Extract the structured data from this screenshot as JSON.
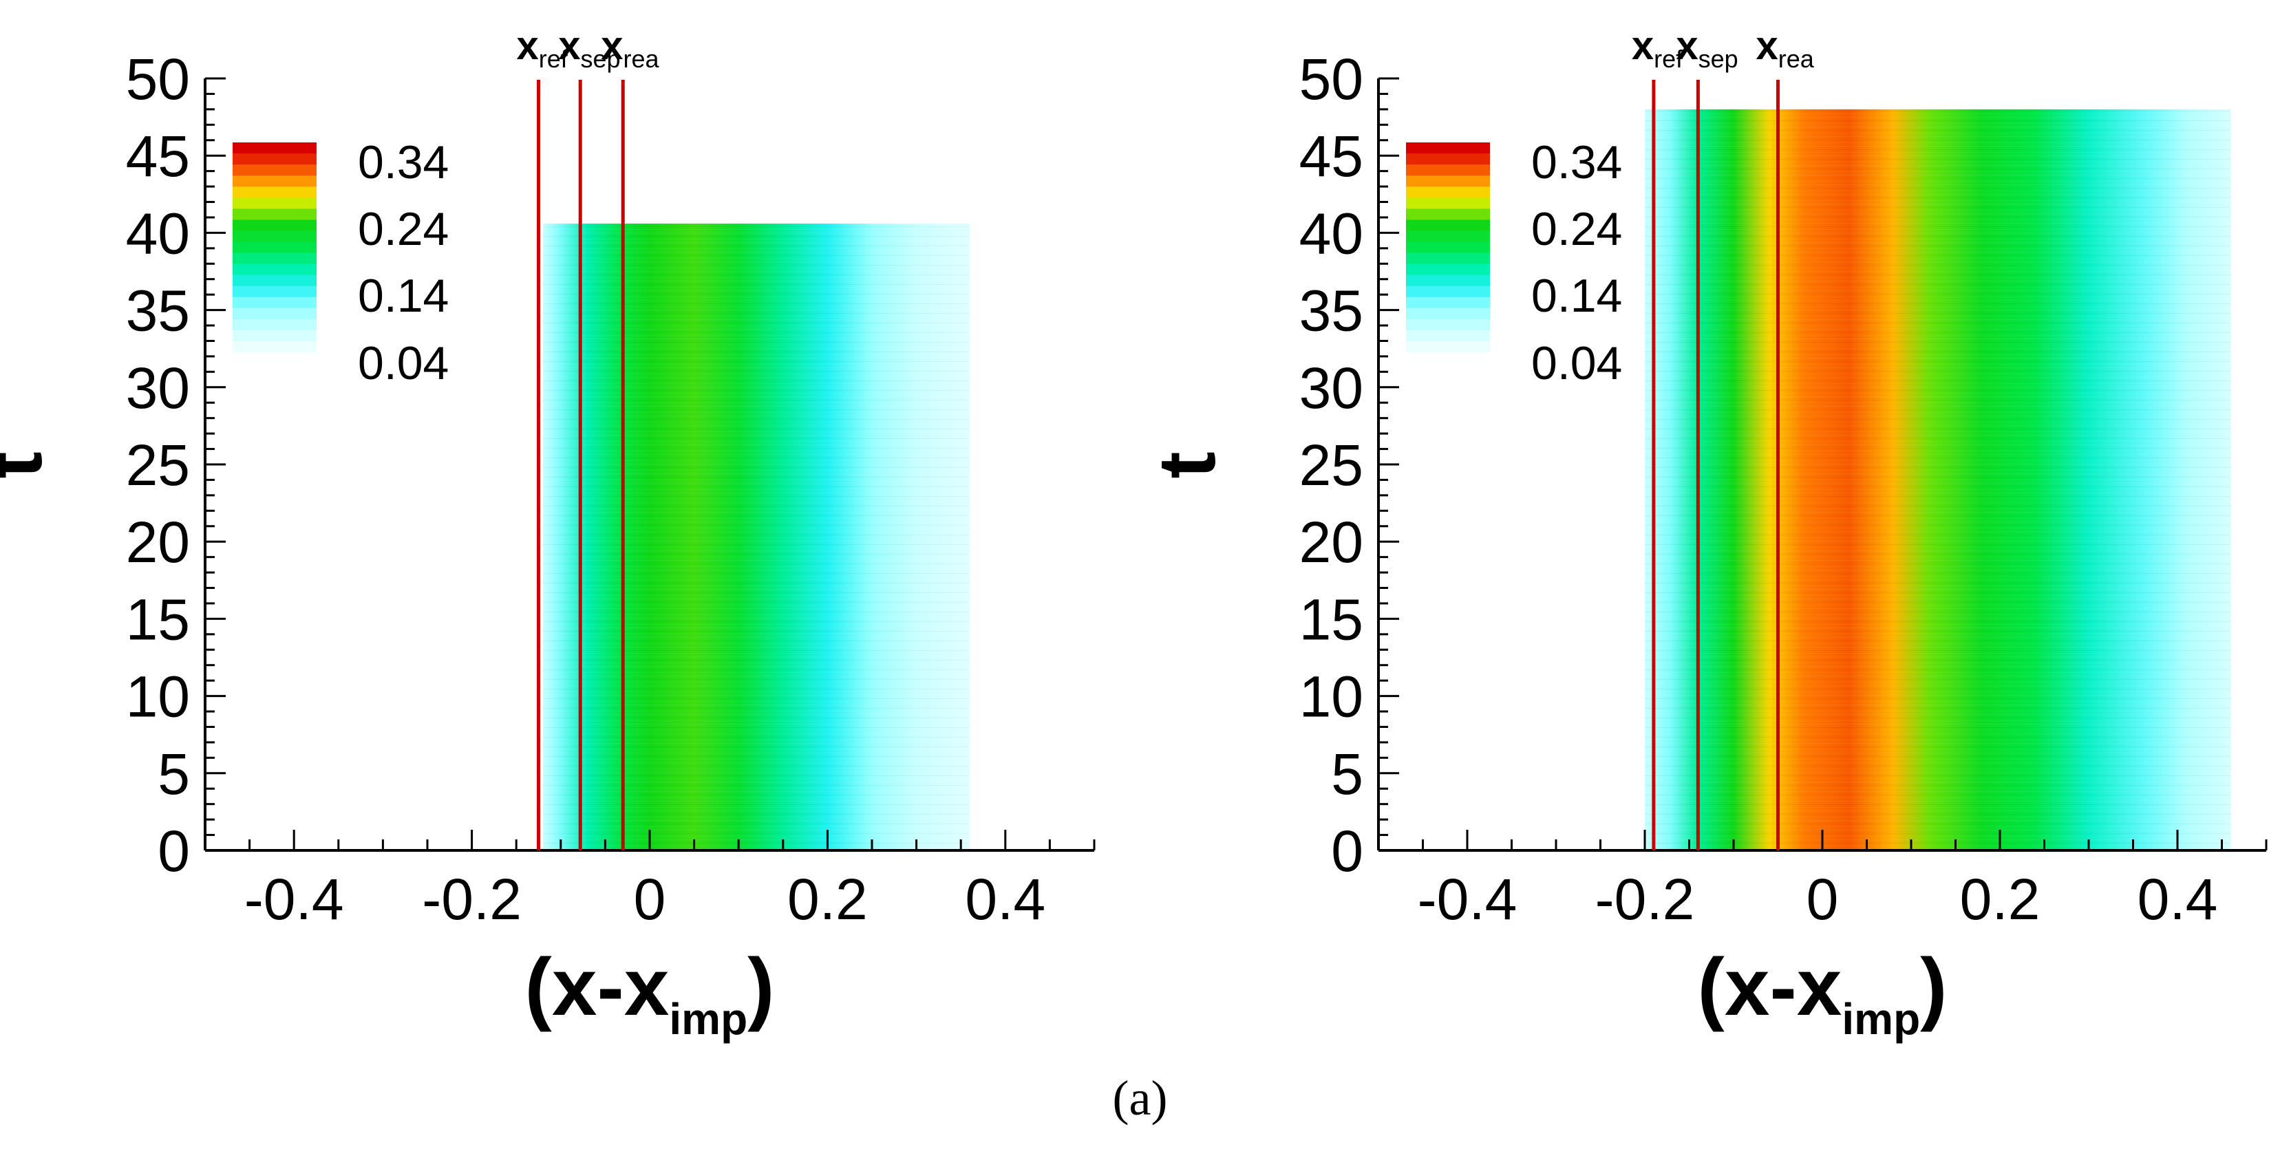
{
  "caption": "(a)",
  "chart_data": [
    {
      "type": "heatmap",
      "panel": "left",
      "xlabel": "(x-x",
      "xlabel_sub": "imp",
      "xlabel_close": ")",
      "ylabel": "t",
      "xlim": [
        -0.5,
        0.5
      ],
      "ylim": [
        0,
        50
      ],
      "x_ticks": [
        -0.4,
        -0.2,
        0,
        0.2,
        0.4
      ],
      "x_tick_labels": [
        "-0.4",
        "-0.2",
        "0",
        "0.2",
        "0.4"
      ],
      "y_ticks": [
        0,
        5,
        10,
        15,
        20,
        25,
        30,
        35,
        40,
        45,
        50
      ],
      "y_tick_labels": [
        "0",
        "5",
        "10",
        "15",
        "20",
        "25",
        "30",
        "35",
        "40",
        "45",
        "50"
      ],
      "data_extent": {
        "x": [
          -0.12,
          0.36
        ],
        "t": [
          0,
          40.6
        ]
      },
      "colormap_profile": [
        {
          "x": -0.12,
          "value": 0.05
        },
        {
          "x": -0.1,
          "value": 0.1
        },
        {
          "x": -0.07,
          "value": 0.16
        },
        {
          "x": -0.03,
          "value": 0.21
        },
        {
          "x": 0.0,
          "value": 0.24
        },
        {
          "x": 0.05,
          "value": 0.25
        },
        {
          "x": 0.1,
          "value": 0.22
        },
        {
          "x": 0.15,
          "value": 0.17
        },
        {
          "x": 0.2,
          "value": 0.13
        },
        {
          "x": 0.25,
          "value": 0.09
        },
        {
          "x": 0.3,
          "value": 0.05
        },
        {
          "x": 0.36,
          "value": 0.03
        }
      ],
      "markers": [
        {
          "label": "x",
          "sub": "ref",
          "x": -0.125
        },
        {
          "label": "x",
          "sub": "sep",
          "x": -0.078
        },
        {
          "label": "x",
          "sub": "rea",
          "x": -0.03
        }
      ],
      "legend": {
        "placement": "top-left",
        "labels": [
          "0.34",
          "0.24",
          "0.14",
          "0.04"
        ]
      }
    },
    {
      "type": "heatmap",
      "panel": "right",
      "xlabel": "(x-x",
      "xlabel_sub": "imp",
      "xlabel_close": ")",
      "ylabel": "t",
      "xlim": [
        -0.5,
        0.5
      ],
      "ylim": [
        0,
        50
      ],
      "x_ticks": [
        -0.4,
        -0.2,
        0,
        0.2,
        0.4
      ],
      "x_tick_labels": [
        "-0.4",
        "-0.2",
        "0",
        "0.2",
        "0.4"
      ],
      "y_ticks": [
        0,
        5,
        10,
        15,
        20,
        25,
        30,
        35,
        40,
        45,
        50
      ],
      "y_tick_labels": [
        "0",
        "5",
        "10",
        "15",
        "20",
        "25",
        "30",
        "35",
        "40",
        "45",
        "50"
      ],
      "data_extent": {
        "x": [
          -0.2,
          0.46
        ],
        "t": [
          0,
          48
        ]
      },
      "colormap_profile": [
        {
          "x": -0.2,
          "value": 0.05
        },
        {
          "x": -0.17,
          "value": 0.1
        },
        {
          "x": -0.14,
          "value": 0.17
        },
        {
          "x": -0.1,
          "value": 0.24
        },
        {
          "x": -0.06,
          "value": 0.3
        },
        {
          "x": -0.02,
          "value": 0.33
        },
        {
          "x": 0.03,
          "value": 0.34
        },
        {
          "x": 0.08,
          "value": 0.31
        },
        {
          "x": 0.12,
          "value": 0.26
        },
        {
          "x": 0.18,
          "value": 0.23
        },
        {
          "x": 0.24,
          "value": 0.2
        },
        {
          "x": 0.3,
          "value": 0.15
        },
        {
          "x": 0.36,
          "value": 0.11
        },
        {
          "x": 0.41,
          "value": 0.07
        },
        {
          "x": 0.46,
          "value": 0.04
        }
      ],
      "markers": [
        {
          "label": "x",
          "sub": "ref",
          "x": -0.19
        },
        {
          "label": "x",
          "sub": "sep",
          "x": -0.14
        },
        {
          "label": "x",
          "sub": "rea",
          "x": -0.05
        }
      ],
      "legend": {
        "placement": "top-left",
        "labels": [
          "0.34",
          "0.24",
          "0.14",
          "0.04"
        ]
      }
    }
  ]
}
